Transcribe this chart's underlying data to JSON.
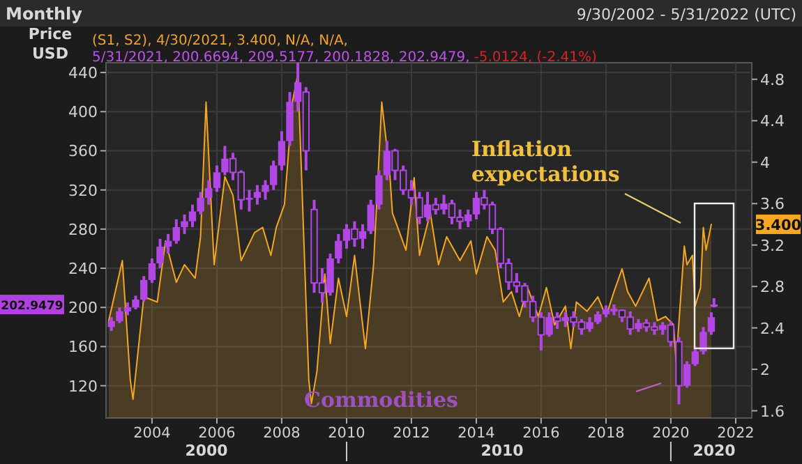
{
  "chart_data": {
    "type": "candlestick",
    "title": "Monthly",
    "subtitle": "9/30/2002 - 5/31/2022 (UTC)",
    "ylabel": "Price USD",
    "color": "#b347e6",
    "x": [
      "2002-10",
      "2003-01",
      "2003-04",
      "2003-07",
      "2003-10",
      "2004-01",
      "2004-04",
      "2004-07",
      "2004-10",
      "2005-01",
      "2005-04",
      "2005-07",
      "2005-10",
      "2006-01",
      "2006-04",
      "2006-07",
      "2006-10",
      "2007-01",
      "2007-04",
      "2007-07",
      "2007-10",
      "2008-01",
      "2008-04",
      "2008-07",
      "2008-10",
      "2009-01",
      "2009-04",
      "2009-07",
      "2009-10",
      "2010-01",
      "2010-04",
      "2010-07",
      "2010-10",
      "2011-01",
      "2011-04",
      "2011-07",
      "2011-10",
      "2012-01",
      "2012-04",
      "2012-07",
      "2012-10",
      "2013-01",
      "2013-04",
      "2013-07",
      "2013-10",
      "2014-01",
      "2014-04",
      "2014-07",
      "2014-10",
      "2015-01",
      "2015-04",
      "2015-07",
      "2015-10",
      "2016-01",
      "2016-04",
      "2016-07",
      "2016-10",
      "2017-01",
      "2017-04",
      "2017-07",
      "2017-10",
      "2018-01",
      "2018-04",
      "2018-07",
      "2018-10",
      "2019-01",
      "2019-04",
      "2019-07",
      "2019-10",
      "2020-01",
      "2020-04",
      "2020-07",
      "2020-10",
      "2021-01",
      "2021-04",
      "2021-05"
    ],
    "ohlc": [
      [
        180,
        190,
        176,
        186
      ],
      [
        186,
        200,
        184,
        196
      ],
      [
        196,
        205,
        192,
        200
      ],
      [
        200,
        212,
        198,
        208
      ],
      [
        208,
        232,
        206,
        228
      ],
      [
        228,
        250,
        225,
        245
      ],
      [
        245,
        270,
        240,
        262
      ],
      [
        262,
        275,
        255,
        268
      ],
      [
        268,
        290,
        265,
        282
      ],
      [
        282,
        295,
        275,
        288
      ],
      [
        288,
        305,
        282,
        298
      ],
      [
        298,
        318,
        295,
        312
      ],
      [
        312,
        330,
        305,
        322
      ],
      [
        322,
        345,
        318,
        338
      ],
      [
        338,
        365,
        335,
        352
      ],
      [
        352,
        358,
        330,
        338
      ],
      [
        338,
        340,
        300,
        310
      ],
      [
        310,
        320,
        298,
        312
      ],
      [
        312,
        325,
        305,
        318
      ],
      [
        318,
        330,
        310,
        325
      ],
      [
        325,
        350,
        320,
        345
      ],
      [
        345,
        380,
        340,
        370
      ],
      [
        370,
        420,
        365,
        410
      ],
      [
        410,
        450,
        400,
        430
      ],
      [
        420,
        425,
        340,
        360
      ],
      [
        300,
        310,
        215,
        225
      ],
      [
        225,
        240,
        205,
        215
      ],
      [
        215,
        255,
        212,
        250
      ],
      [
        250,
        275,
        245,
        268
      ],
      [
        268,
        285,
        260,
        280
      ],
      [
        280,
        288,
        262,
        270
      ],
      [
        270,
        285,
        260,
        278
      ],
      [
        278,
        310,
        275,
        305
      ],
      [
        305,
        340,
        300,
        335
      ],
      [
        335,
        370,
        330,
        360
      ],
      [
        360,
        362,
        330,
        340
      ],
      [
        340,
        345,
        315,
        320
      ],
      [
        320,
        330,
        305,
        312
      ],
      [
        312,
        318,
        285,
        292
      ],
      [
        292,
        318,
        288,
        305
      ],
      [
        305,
        312,
        295,
        300
      ],
      [
        300,
        315,
        295,
        306
      ],
      [
        306,
        310,
        285,
        292
      ],
      [
        292,
        300,
        280,
        288
      ],
      [
        288,
        300,
        282,
        295
      ],
      [
        295,
        318,
        290,
        312
      ],
      [
        312,
        320,
        300,
        305
      ],
      [
        305,
        308,
        275,
        280
      ],
      [
        280,
        282,
        240,
        245
      ],
      [
        245,
        250,
        218,
        226
      ],
      [
        226,
        235,
        215,
        222
      ],
      [
        222,
        225,
        200,
        206
      ],
      [
        206,
        212,
        185,
        190
      ],
      [
        190,
        195,
        156,
        172
      ],
      [
        172,
        195,
        170,
        190
      ],
      [
        190,
        195,
        178,
        186
      ],
      [
        186,
        195,
        180,
        190
      ],
      [
        190,
        196,
        180,
        185
      ],
      [
        185,
        188,
        172,
        178
      ],
      [
        178,
        190,
        175,
        185
      ],
      [
        185,
        196,
        183,
        193
      ],
      [
        193,
        202,
        190,
        198
      ],
      [
        198,
        203,
        192,
        197
      ],
      [
        197,
        198,
        185,
        190
      ],
      [
        190,
        196,
        172,
        178
      ],
      [
        178,
        188,
        175,
        184
      ],
      [
        184,
        188,
        175,
        180
      ],
      [
        180,
        185,
        172,
        177
      ],
      [
        177,
        185,
        172,
        182
      ],
      [
        182,
        186,
        160,
        165
      ],
      [
        165,
        170,
        101,
        120
      ],
      [
        120,
        145,
        118,
        142
      ],
      [
        142,
        160,
        140,
        155
      ],
      [
        155,
        180,
        152,
        175
      ],
      [
        175,
        195,
        172,
        190
      ],
      [
        200.6694,
        209.5177,
        200.1828,
        202.9479
      ]
    ],
    "series": [
      {
        "type": "area",
        "axis": "y2",
        "color": "#f5a623",
        "x": [
          "2002-09",
          "2003-02",
          "2003-05",
          "2003-06",
          "2003-10",
          "2004-03",
          "2004-06",
          "2004-10",
          "2005-01",
          "2005-05",
          "2005-07",
          "2005-09",
          "2005-12",
          "2006-04",
          "2006-07",
          "2006-10",
          "2007-03",
          "2007-06",
          "2007-09",
          "2007-11",
          "2008-02",
          "2008-05",
          "2008-07",
          "2008-08",
          "2008-11",
          "2008-12",
          "2009-02",
          "2009-05",
          "2009-07",
          "2009-10",
          "2010-01",
          "2010-04",
          "2010-08",
          "2010-11",
          "2011-02",
          "2011-05",
          "2011-06",
          "2011-11",
          "2012-02",
          "2012-04",
          "2012-08",
          "2012-11",
          "2013-02",
          "2013-07",
          "2013-11",
          "2014-01",
          "2014-05",
          "2014-08",
          "2014-11",
          "2015-02",
          "2015-05",
          "2015-08",
          "2015-12",
          "2016-03",
          "2016-06",
          "2016-10",
          "2016-12",
          "2017-02",
          "2017-06",
          "2017-10",
          "2018-01",
          "2018-04",
          "2018-07",
          "2018-09",
          "2018-12",
          "2019-05",
          "2019-08",
          "2019-11",
          "2020-02",
          "2020-03",
          "2020-06",
          "2020-07",
          "2020-09",
          "2020-10",
          "2020-12",
          "2021-01",
          "2021-02",
          "2021-04"
        ],
        "values": [
          2.47,
          3.05,
          1.9,
          1.71,
          2.7,
          2.65,
          3.24,
          2.84,
          3.01,
          2.88,
          3.28,
          4.58,
          3.01,
          3.86,
          3.68,
          3.05,
          3.32,
          3.37,
          3.1,
          3.37,
          3.59,
          4.58,
          4.85,
          4.13,
          1.9,
          1.67,
          1.98,
          2.92,
          2.25,
          2.88,
          2.51,
          3.1,
          2.2,
          3.01,
          4.58,
          3.91,
          3.51,
          3.15,
          3.85,
          3.1,
          3.51,
          3.01,
          3.28,
          3.05,
          3.24,
          2.92,
          3.28,
          3.15,
          2.65,
          2.75,
          2.51,
          2.79,
          2.51,
          2.79,
          2.43,
          2.61,
          2.2,
          2.65,
          2.56,
          2.7,
          2.51,
          2.75,
          2.97,
          2.75,
          2.61,
          2.88,
          2.47,
          2.51,
          2.43,
          2.07,
          3.19,
          3.01,
          3.1,
          2.61,
          2.79,
          3.37,
          3.15,
          3.4
        ]
      }
    ],
    "xlim": [
      "2002-08",
      "2022-07"
    ],
    "xticks": [
      "2004",
      "2006",
      "2008",
      "2010",
      "2012",
      "2014",
      "2016",
      "2018",
      "2020",
      "2022"
    ],
    "ylim": [
      87,
      450
    ],
    "yticks": [
      120,
      160,
      200,
      240,
      280,
      320,
      360,
      400,
      440
    ],
    "y2lim": [
      1.53,
      4.96
    ],
    "y2ticks": [
      1.6,
      2,
      2.4,
      2.8,
      3.2,
      3.6,
      4,
      4.4,
      4.8
    ],
    "grid": true,
    "annotations": [
      "202.9479",
      "3.400",
      "Inflation expectations",
      "Commodities",
      "(S1, S2), 4/30/2021, 3.400, N/A, N/A,",
      "5/31/2021, 200.6694, 209.5177, 200.1828, 202.9479,",
      "-5.0124, (-2.41%)",
      "2000",
      "2010",
      "2020"
    ]
  }
}
